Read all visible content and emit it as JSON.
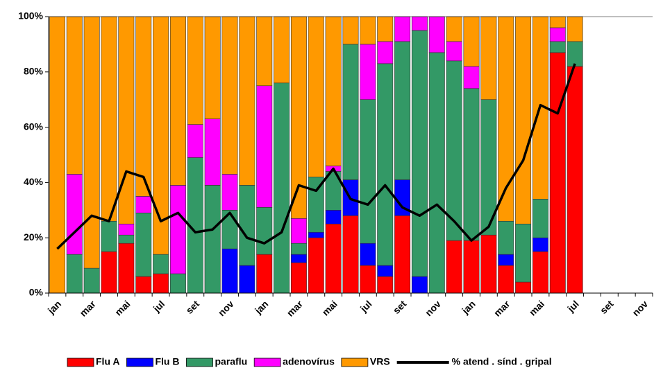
{
  "chart_data": {
    "type": "bar",
    "stacked": true,
    "categories": [
      "jan",
      null,
      "mar",
      null,
      "mai",
      null,
      "jul",
      null,
      "set",
      null,
      "nov",
      null,
      "jan",
      null,
      "mar",
      null,
      "mai",
      null,
      "jul",
      null,
      "set",
      null,
      "nov",
      null,
      "jan",
      null,
      "mar",
      null,
      "mai",
      null,
      "jul",
      null,
      "set",
      null,
      "nov"
    ],
    "series": [
      {
        "name": "Flu A",
        "color": "#ff0000",
        "values": [
          0,
          0,
          0,
          15,
          18,
          6,
          7,
          0,
          0,
          0,
          0,
          0,
          14,
          0,
          11,
          20,
          25,
          28,
          10,
          6,
          28,
          0,
          0,
          19,
          19,
          21,
          10,
          4,
          15,
          87,
          82,
          null,
          null,
          null,
          null
        ]
      },
      {
        "name": "Flu B",
        "color": "#0000ff",
        "values": [
          0,
          0,
          0,
          0,
          0,
          0,
          0,
          0,
          0,
          0,
          16,
          10,
          0,
          0,
          3,
          2,
          5,
          13,
          8,
          4,
          13,
          6,
          0,
          0,
          0,
          0,
          4,
          0,
          5,
          0,
          0,
          null,
          null,
          null,
          null
        ]
      },
      {
        "name": "paraflu",
        "color": "#339966",
        "values": [
          0,
          14,
          9,
          11,
          3,
          23,
          7,
          7,
          49,
          39,
          14,
          29,
          17,
          76,
          4,
          20,
          14,
          49,
          52,
          73,
          50,
          89,
          87,
          65,
          55,
          49,
          12,
          21,
          14,
          4,
          9,
          null,
          null,
          null,
          null
        ]
      },
      {
        "name": "adenovírus",
        "color": "#ff00ff",
        "values": [
          0,
          29,
          0,
          0,
          4,
          6,
          0,
          32,
          12,
          24,
          13,
          0,
          44,
          0,
          9,
          0,
          2,
          0,
          20,
          8,
          9,
          5,
          13,
          7,
          8,
          0,
          0,
          0,
          0,
          5,
          0,
          null,
          null,
          null,
          null
        ]
      },
      {
        "name": "VRS",
        "color": "#ff9900",
        "values": [
          100,
          57,
          91,
          74,
          75,
          65,
          86,
          61,
          39,
          37,
          57,
          61,
          25,
          24,
          73,
          58,
          54,
          10,
          10,
          9,
          0,
          0,
          0,
          9,
          18,
          30,
          74,
          75,
          66,
          4,
          9,
          null,
          null,
          null,
          null
        ]
      },
      {
        "name": "% atend . sínd . gripal",
        "type": "line",
        "color": "#000000",
        "values": [
          16,
          22,
          28,
          26,
          44,
          42,
          26,
          29,
          22,
          23,
          29,
          20,
          18,
          22,
          39,
          37,
          45,
          34,
          32,
          39,
          31,
          28,
          32,
          26,
          19,
          24,
          38,
          48,
          68,
          65,
          83,
          null,
          null,
          null,
          null
        ]
      }
    ],
    "ylim": [
      0,
      100
    ],
    "yticks": [
      {
        "value": 0,
        "label": "0%"
      },
      {
        "value": 20,
        "label": "20%"
      },
      {
        "value": 40,
        "label": "40%"
      },
      {
        "value": 60,
        "label": "60%"
      },
      {
        "value": 80,
        "label": "80%"
      },
      {
        "value": 100,
        "label": "100%"
      }
    ],
    "legend": "bottom"
  }
}
